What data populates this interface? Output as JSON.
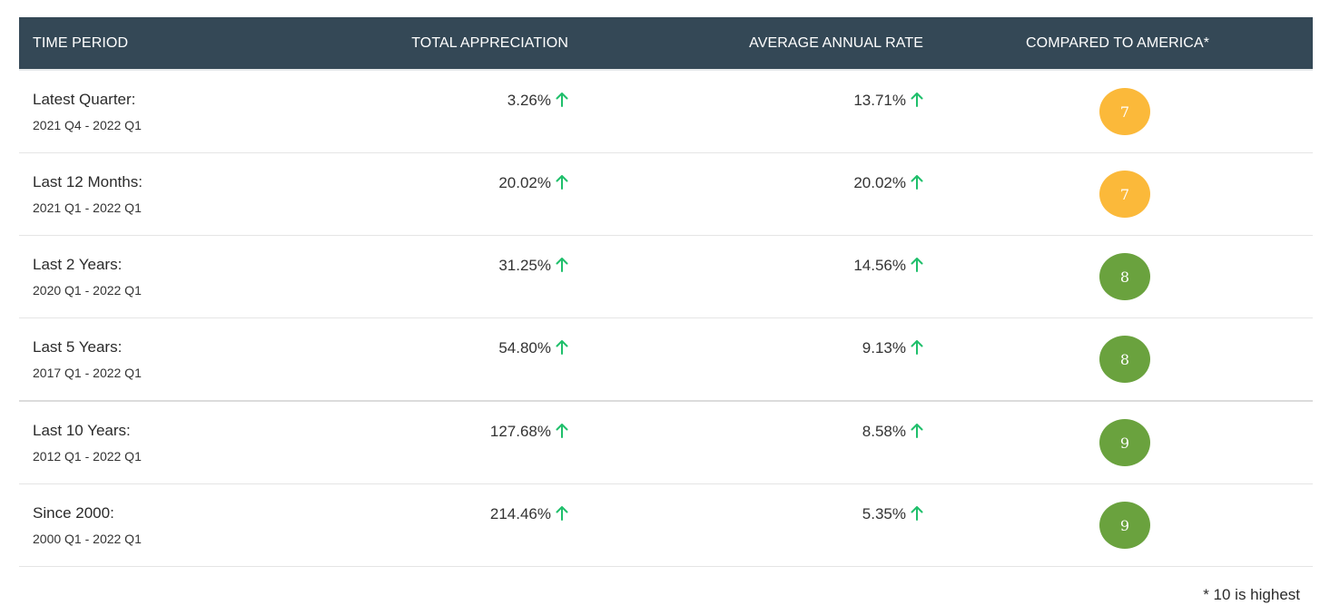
{
  "header": {
    "time_period": "TIME PERIOD",
    "total_appreciation": "TOTAL APPRECIATION",
    "average_annual_rate": "AVERAGE ANNUAL RATE",
    "compared_to_america": "COMPARED TO AMERICA*"
  },
  "rows": [
    {
      "period": "Latest Quarter:",
      "range": "2021 Q4 - 2022 Q1",
      "total": "3.26%",
      "annual": "13.71%",
      "score": "7",
      "color": "#fbb93a"
    },
    {
      "period": "Last 12 Months:",
      "range": "2021 Q1 - 2022 Q1",
      "total": "20.02%",
      "annual": "20.02%",
      "score": "7",
      "color": "#fbb93a"
    },
    {
      "period": "Last 2 Years:",
      "range": "2020 Q1 - 2022 Q1",
      "total": "31.25%",
      "annual": "14.56%",
      "score": "8",
      "color": "#6aa23e"
    },
    {
      "period": "Last 5 Years:",
      "range": "2017 Q1 - 2022 Q1",
      "total": "54.80%",
      "annual": "9.13%",
      "score": "8",
      "color": "#6aa23e"
    },
    {
      "period": "Last 10 Years:",
      "range": "2012 Q1 - 2022 Q1",
      "total": "127.68%",
      "annual": "8.58%",
      "score": "9",
      "color": "#6aa23e"
    },
    {
      "period": "Since 2000:",
      "range": "2000 Q1 - 2022 Q1",
      "total": "214.46%",
      "annual": "5.35%",
      "score": "9",
      "color": "#6aa23e"
    }
  ],
  "footnote": "* 10 is highest",
  "colors": {
    "header_bg": "#344856",
    "arrow_up": "#1fbf6b"
  },
  "icons": {
    "trend": "arrow-up-icon"
  }
}
